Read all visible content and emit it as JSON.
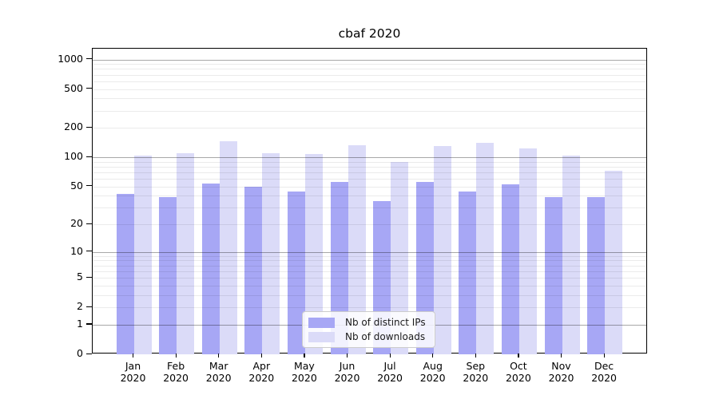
{
  "title": "cbaf 2020",
  "chart_data": {
    "type": "bar",
    "title": "cbaf 2020",
    "categories": [
      "Jan 2020",
      "Feb 2020",
      "Mar 2020",
      "Apr 2020",
      "May 2020",
      "Jun 2020",
      "Jul 2020",
      "Aug 2020",
      "Sep 2020",
      "Oct 2020",
      "Nov 2020",
      "Dec 2020"
    ],
    "series": [
      {
        "name": "Nb of distinct IPs",
        "color": "#a7a7f5",
        "values": [
          42,
          39,
          54,
          50,
          44,
          56,
          35,
          56,
          44,
          53,
          39,
          39
        ]
      },
      {
        "name": "Nb of downloads",
        "color": "#dbdbf8",
        "values": [
          105,
          111,
          146,
          111,
          109,
          134,
          90,
          131,
          140,
          124,
          105,
          73
        ]
      }
    ],
    "y_axis": {
      "scale": "log10(1+value)",
      "tick_values": [
        0,
        1,
        2,
        5,
        10,
        20,
        50,
        100,
        200,
        500,
        1000
      ],
      "major_gridlines": [
        1,
        10,
        100,
        1000
      ],
      "minor_gridlines": [
        2,
        3,
        4,
        5,
        6,
        7,
        8,
        9,
        20,
        30,
        40,
        50,
        60,
        70,
        80,
        90,
        200,
        300,
        400,
        500,
        600,
        700,
        800,
        900
      ],
      "top_value": 1230
    },
    "x_axis": {
      "tick_label_style": "two-line month over year"
    },
    "legend": {
      "entries": [
        "Nb of distinct IPs",
        "Nb of downloads"
      ],
      "position": "lower center"
    },
    "grid": "on",
    "background": "#ffffff",
    "text_color": "#000000"
  }
}
